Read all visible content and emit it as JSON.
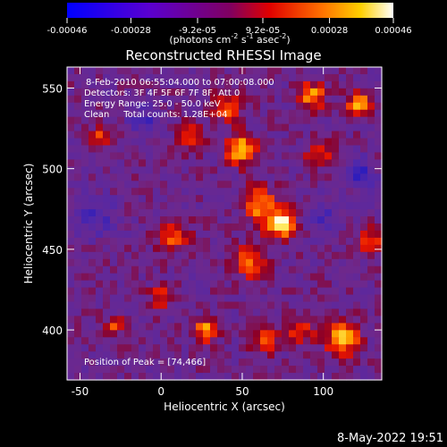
{
  "chart_data": {
    "type": "heatmap",
    "title": "Reconstructed RHESSI Image",
    "xlabel": "Heliocentric X (arcsec)",
    "ylabel": "Heliocentric Y (arcsec)",
    "xlim": [
      -58,
      136
    ],
    "ylim": [
      369,
      563
    ],
    "xticks": [
      "-50",
      "0",
      "50",
      "100"
    ],
    "xtick_values": [
      -50,
      0,
      50,
      100
    ],
    "yticks": [
      "400",
      "450",
      "500",
      "550"
    ],
    "ytick_values": [
      400,
      450,
      500,
      550
    ],
    "colorbar": {
      "ticks": [
        "-0.00046",
        "-0.00028",
        "-9.2e-05",
        "9.2e-05",
        "0.00028",
        "0.00046"
      ],
      "tick_values": [
        -0.00046,
        -0.00028,
        -9.2e-05,
        9.2e-05,
        0.00028,
        0.00046
      ],
      "range": [
        -0.00046,
        0.00046
      ],
      "units_label": "(photons cm",
      "units_exp1": "-2",
      "units_mid": " s",
      "units_exp2": "-1",
      "units_mid2": " asec",
      "units_exp3": "-2",
      "units_end": ")"
    },
    "annotations": {
      "time_range": "8-Feb-2010 06:55:04.000 to 07:00:08.000",
      "detectors": "Detectors: 3F 4F 5F 6F 7F 8F, Att 0",
      "energy": "Energy Range: 25.0 - 50.0 keV",
      "clean": "Clean     Total counts: 1.28E+04",
      "peak": "Position of Peak = [74,466]"
    },
    "peak_position": [
      74,
      466
    ],
    "bright_sources": [
      {
        "x": 74,
        "y": 466,
        "strength": 1.0,
        "radius": 9
      },
      {
        "x": 49,
        "y": 512,
        "strength": 0.85,
        "radius": 9
      },
      {
        "x": 60,
        "y": 478,
        "strength": 0.7,
        "radius": 10
      },
      {
        "x": 28,
        "y": 400,
        "strength": 0.75,
        "radius": 7
      },
      {
        "x": 112,
        "y": 395,
        "strength": 0.8,
        "radius": 10
      },
      {
        "x": 122,
        "y": 540,
        "strength": 0.7,
        "radius": 8
      },
      {
        "x": 93,
        "y": 545,
        "strength": 0.7,
        "radius": 8
      },
      {
        "x": 8,
        "y": 458,
        "strength": 0.55,
        "radius": 9
      },
      {
        "x": 55,
        "y": 442,
        "strength": 0.55,
        "radius": 10
      },
      {
        "x": 64,
        "y": 393,
        "strength": 0.55,
        "radius": 8
      },
      {
        "x": -38,
        "y": 520,
        "strength": 0.5,
        "radius": 6
      },
      {
        "x": 128,
        "y": 455,
        "strength": 0.55,
        "radius": 8
      },
      {
        "x": 40,
        "y": 538,
        "strength": 0.55,
        "radius": 9
      },
      {
        "x": 86,
        "y": 400,
        "strength": 0.5,
        "radius": 8
      },
      {
        "x": -28,
        "y": 402,
        "strength": 0.5,
        "radius": 5
      },
      {
        "x": 18,
        "y": 520,
        "strength": 0.4,
        "radius": 8
      },
      {
        "x": 98,
        "y": 510,
        "strength": 0.45,
        "radius": 9
      },
      {
        "x": 0,
        "y": 420,
        "strength": 0.4,
        "radius": 8
      }
    ],
    "dark_sources": [
      {
        "x": 122,
        "y": 497,
        "strength": 0.6,
        "radius": 9
      },
      {
        "x": -10,
        "y": 530,
        "strength": 0.4,
        "radius": 10
      },
      {
        "x": -40,
        "y": 470,
        "strength": 0.4,
        "radius": 12
      },
      {
        "x": 100,
        "y": 470,
        "strength": 0.35,
        "radius": 10
      }
    ]
  },
  "footer": {
    "date": "8-May-2022 19:51"
  },
  "colors": {
    "background": "#000000",
    "text": "#ffffff"
  }
}
